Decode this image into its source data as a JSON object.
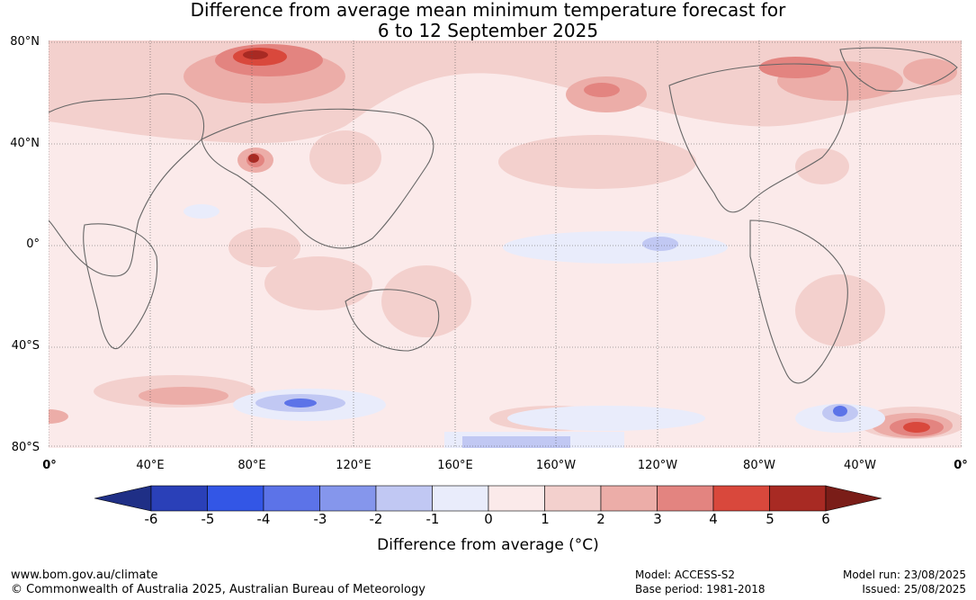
{
  "title": {
    "line1": "Difference from average mean minimum temperature forecast for",
    "line2": "6 to 12 September 2025"
  },
  "map": {
    "lat_labels": [
      "80°N",
      "40°N",
      "0°",
      "40°S",
      "80°S"
    ],
    "lon_labels": [
      "0°",
      "40°E",
      "80°E",
      "120°E",
      "160°E",
      "160°W",
      "120°W",
      "80°W",
      "40°W",
      "0°"
    ],
    "legend_colors": {
      "-6": "#1f2f86",
      "-5": "#2a40b8",
      "-4": "#3356e6",
      "-3": "#5c73e8",
      "-2": "#8596ec",
      "-1": "#c1c8f3",
      "0": "#e9ecfb",
      "1": "#fbeaea",
      "2": "#f3d0cd",
      "3": "#ecada8",
      "4": "#e38480",
      "5": "#d9483c",
      "6": "#a82a23",
      "7": "#7a1d18"
    },
    "land_outline_color": "#666666"
  },
  "colorbar": {
    "ticks": [
      "-6",
      "-5",
      "-4",
      "-3",
      "-2",
      "-1",
      "0",
      "1",
      "2",
      "3",
      "4",
      "5",
      "6"
    ],
    "label": "Difference from average (°C)"
  },
  "footer": {
    "website": "www.bom.gov.au/climate",
    "copyright": "© Commonwealth of Australia 2025, Australian Bureau of Meteorology",
    "model": "Model: ACCESS-S2",
    "base_period": "Base period: 1981-2018",
    "model_run": "Model run: 23/08/2025",
    "issued": "Issued: 25/08/2025"
  }
}
